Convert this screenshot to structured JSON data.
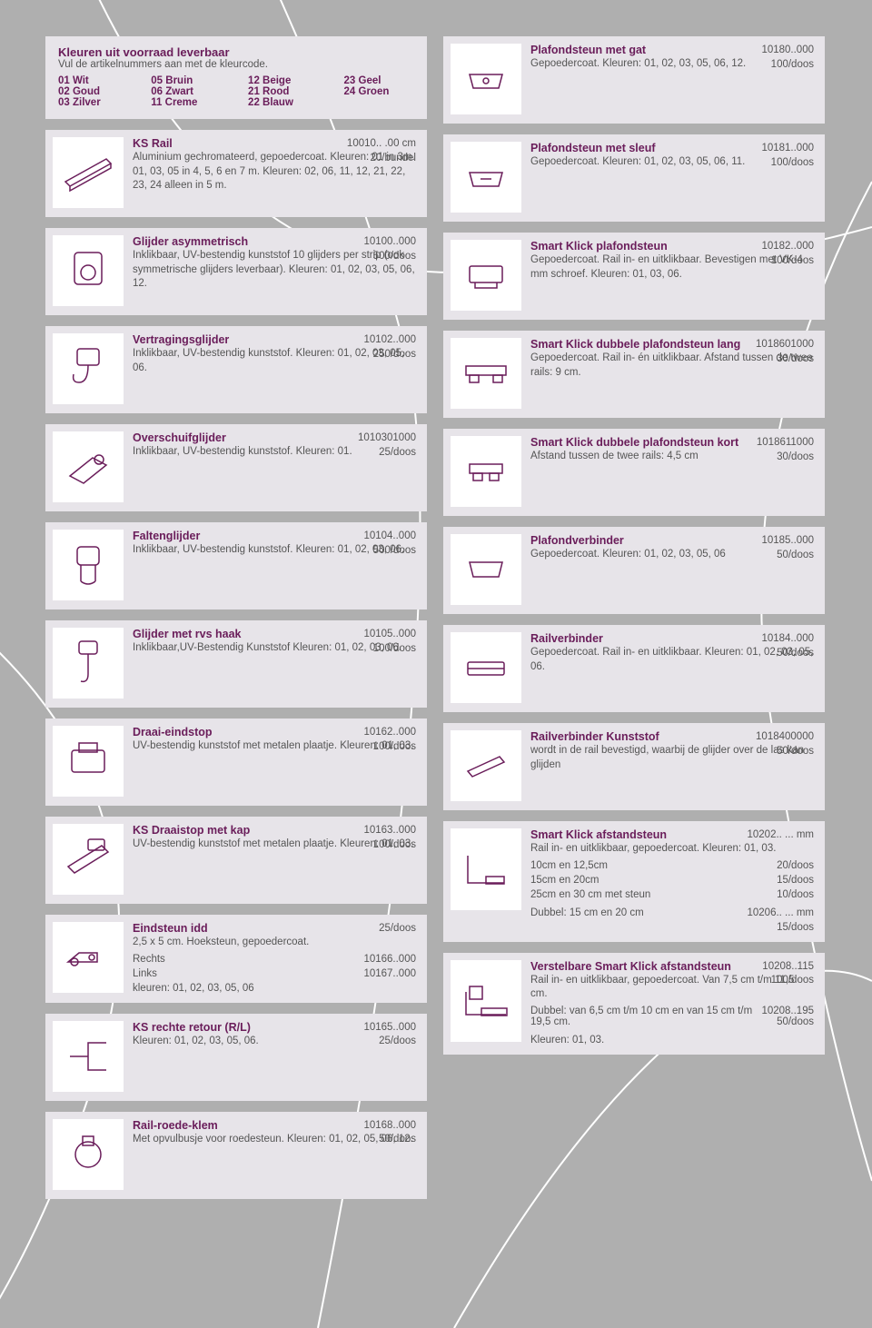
{
  "colors": {
    "accent": "#6a1d5a",
    "card_bg": "#e7e4e9",
    "page_bg": "#afafaf",
    "text": "#555555",
    "thumb_bg": "#ffffff"
  },
  "header": {
    "title": "Kleuren uit voorraad leverbaar",
    "subtitle": "Vul de artikelnummers aan met de kleurcode.",
    "colors": [
      "01 Wit",
      "05 Bruin",
      "12 Beige",
      "23 Geel",
      "02 Goud",
      "06 Zwart",
      "21 Rood",
      "24 Groen",
      "03 Zilver",
      "11 Creme",
      "22 Blauw",
      ""
    ]
  },
  "left": [
    {
      "icon": "rail",
      "title": "KS Rail",
      "desc": "Aluminium gechromateerd, gepoedercoat. Kleuren: 01 in 3m. 01, 03, 05 in 4, 5, 6 en 7 m. Kleuren: 02, 06, 11, 12, 21, 22, 23, 24 alleen in 5 m.",
      "code": "10010.. .00 cm",
      "qty": "20/bundel"
    },
    {
      "icon": "glider",
      "title": "Glijder asymmetrisch",
      "desc": "Inklikbaar, UV-bestendig kunststof 10 glijders per strip (ook symmetrische glijders leverbaar). Kleuren: 01, 02, 03, 05, 06, 12.",
      "code": "10100..000",
      "qty": "500/doos"
    },
    {
      "icon": "hook",
      "title": "Vertragingsglijder",
      "desc": "Inklikbaar, UV-bestendig kunststof. Kleuren: 01, 02, 03, 05, 06.",
      "code": "10102..000",
      "qty": "250/doos"
    },
    {
      "icon": "slide",
      "title": "Overschuifglijder",
      "desc": "Inklikbaar, UV-bestendig kunststof. Kleuren: 01.",
      "code": "1010301000",
      "qty": "25/doos"
    },
    {
      "icon": "fold",
      "title": "Faltenglijder",
      "desc": "Inklikbaar, UV-bestendig kunststof. Kleuren: 01, 02, 03, 06.",
      "code": "10104..000",
      "qty": "500/doos"
    },
    {
      "icon": "rvshook",
      "title": "Glijder met rvs haak",
      "desc": "Inklikbaar,UV-Bestendig Kunststof Kleuren: 01, 02, 03, 06.",
      "code": "10105..000",
      "qty": "100/doos"
    },
    {
      "icon": "endstop",
      "title": "Draai-eindstop",
      "desc": "UV-bestendig kunststof met metalen plaatje. Kleuren: 01, 03.",
      "code": "10162..000",
      "qty": "100/doos"
    },
    {
      "icon": "capstop",
      "title": "KS Draaistop met kap",
      "desc": "UV-bestendig kunststof met metalen plaatje. Kleuren: 01, 03.",
      "code": "10163..000",
      "qty": "100/doos"
    },
    {
      "icon": "corner",
      "title": "Eindsteun idd",
      "desc": "2,5 x 5 cm. Hoeksteun, gepoedercoat.",
      "code": "",
      "qty": "25/doos",
      "rows": [
        {
          "l": "Rechts",
          "r": "10166..000"
        },
        {
          "l": "Links",
          "r": "10167..000"
        },
        {
          "l": "kleuren: 01, 02, 03, 05, 06",
          "r": ""
        }
      ]
    },
    {
      "icon": "retour",
      "title": "KS rechte retour (R/L)",
      "desc": "Kleuren: 01, 02, 03, 05, 06.",
      "code": "10165..000",
      "qty": "25/doos"
    },
    {
      "icon": "clamp",
      "title": "Rail-roede-klem",
      "desc": "Met opvulbusje voor roedesteun. Kleuren: 01, 02, 05, 06, 12.",
      "code": "10168..000",
      "qty": "50/doos"
    }
  ],
  "right": [
    {
      "icon": "plafg",
      "title": "Plafondsteun met gat",
      "desc": "Gepoedercoat. Kleuren: 01, 02, 03, 05, 06, 12.",
      "code": "10180..000",
      "qty": "100/doos"
    },
    {
      "icon": "plafs",
      "title": "Plafondsteun met sleuf",
      "desc": "Gepoedercoat. Kleuren: 01, 02, 03, 05, 06, 11.",
      "code": "10181..000",
      "qty": "100/doos"
    },
    {
      "icon": "smartk",
      "title": "Smart Klick plafondsteun",
      "desc": "Gepoedercoat. Rail in- en uitklikbaar. Bevestigen met VK-4 mm schroef. Kleuren: 01, 03, 06.",
      "code": "10182..000",
      "qty": "100/doos"
    },
    {
      "icon": "dlang",
      "title": "Smart Klick dubbele plafondsteun lang",
      "desc": "Gepoedercoat. Rail in- én uitklikbaar. Afstand tussen de twee rails: 9 cm.",
      "code": "1018601000",
      "qty": "30/doos"
    },
    {
      "icon": "dkort",
      "title": "Smart Klick dubbele plafondsteun kort",
      "desc": "Afstand tussen de twee rails: 4,5 cm",
      "code": "1018611000",
      "qty": "30/doos"
    },
    {
      "icon": "pverb",
      "title": "Plafondverbinder",
      "desc": "Gepoedercoat. Kleuren: 01, 02, 03, 05, 06",
      "code": "10185..000",
      "qty": "50/doos"
    },
    {
      "icon": "rverb",
      "title": "Railverbinder",
      "desc": "Gepoedercoat. Rail in- en uitklikbaar. Kleuren: 01, 02, 03, 05, 06.",
      "code": "10184..000",
      "qty": "50/doos"
    },
    {
      "icon": "rverbk",
      "title": "Railverbinder Kunststof",
      "desc": "wordt in de rail bevestigd, waarbij de glijder over de las kan glijden",
      "code": "1018400000",
      "qty": "50/doos"
    },
    {
      "icon": "afst",
      "tall": true,
      "title": "Smart Klick afstandsteun",
      "desc": "Rail in- en uitklikbaar, gepoedercoat. Kleuren: 01, 03.",
      "code": "10202.. ... mm",
      "qty": "",
      "rows": [
        {
          "l": "10cm en 12,5cm",
          "r": "20/doos"
        },
        {
          "l": "15cm en 20cm",
          "r": "15/doos"
        },
        {
          "l": "25cm en 30 cm met steun",
          "r": "10/doos"
        },
        {
          "l": " ",
          "r": " "
        },
        {
          "l": "Dubbel:  15 cm en 20 cm",
          "r": "10206.. ... mm"
        },
        {
          "l": "",
          "r": "15/doos"
        }
      ]
    },
    {
      "icon": "verst",
      "tall": true,
      "title": "Verstelbare Smart Klick afstandsteun",
      "desc": "Rail in- en uitklikbaar, gepoedercoat. Van 7,5 cm t/m 11,5 cm.",
      "code": "10208..115",
      "qty": "100/doos",
      "rows": [
        {
          "l": "Dubbel: van 6,5 cm t/m 10 cm en van 15 cm t/m 19,5 cm.",
          "r": "10208..195<br>50/doos"
        },
        {
          "l": " ",
          "r": " "
        },
        {
          "l": "Kleuren: 01, 03.",
          "r": ""
        }
      ]
    }
  ]
}
